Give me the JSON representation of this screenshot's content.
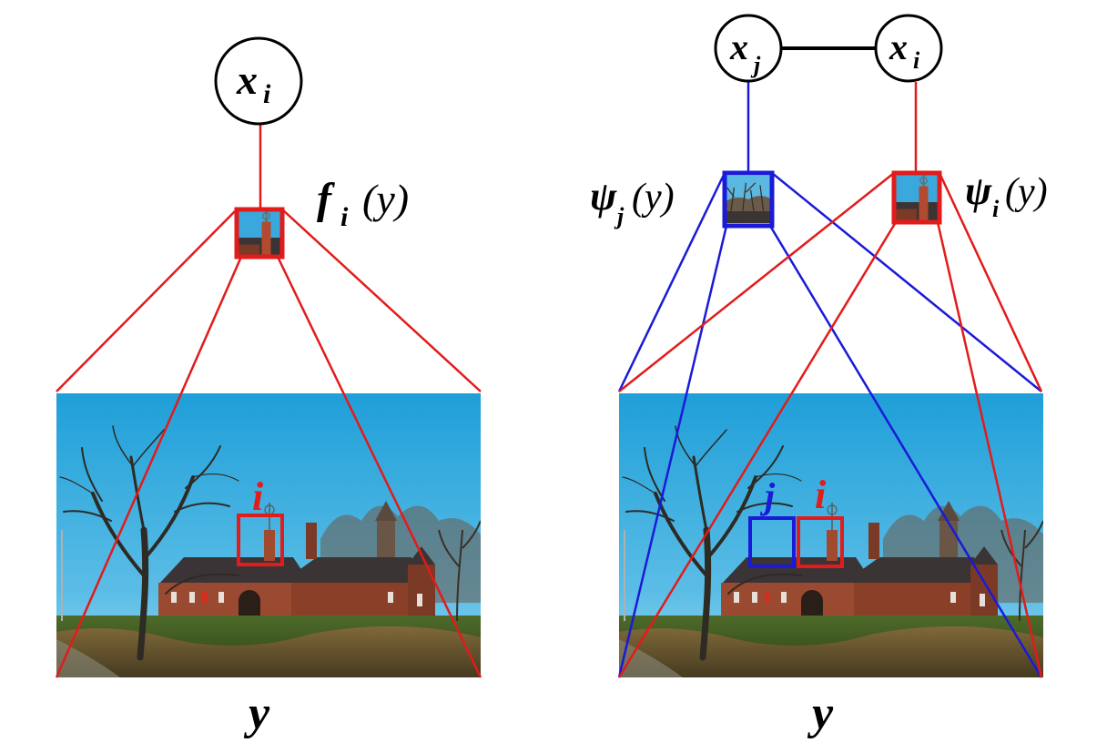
{
  "left_panel": {
    "node": {
      "var": "x",
      "sub": "i"
    },
    "factor": {
      "fn": "f",
      "sub": "i",
      "arg": "(y)"
    },
    "region_label": "i",
    "image_label": "y"
  },
  "right_panel": {
    "node_j": {
      "var": "x",
      "sub": "j"
    },
    "node_i": {
      "var": "x",
      "sub": "i"
    },
    "factor_j": {
      "fn": "ψ",
      "sub": "j",
      "arg": "(y)"
    },
    "factor_i": {
      "fn": "ψ",
      "sub": "i",
      "arg": "(y)"
    },
    "region_label_j": "j",
    "region_label_i": "i",
    "image_label": "y"
  },
  "colors": {
    "red": "#e21b1b",
    "blue": "#1a1ad8",
    "sky_top": "#2aa6da",
    "sky_bottom": "#7ccbe8",
    "grass": "#3f5e21",
    "brick": "#8a3b26",
    "roof": "#3a3636",
    "black": "#000000"
  }
}
